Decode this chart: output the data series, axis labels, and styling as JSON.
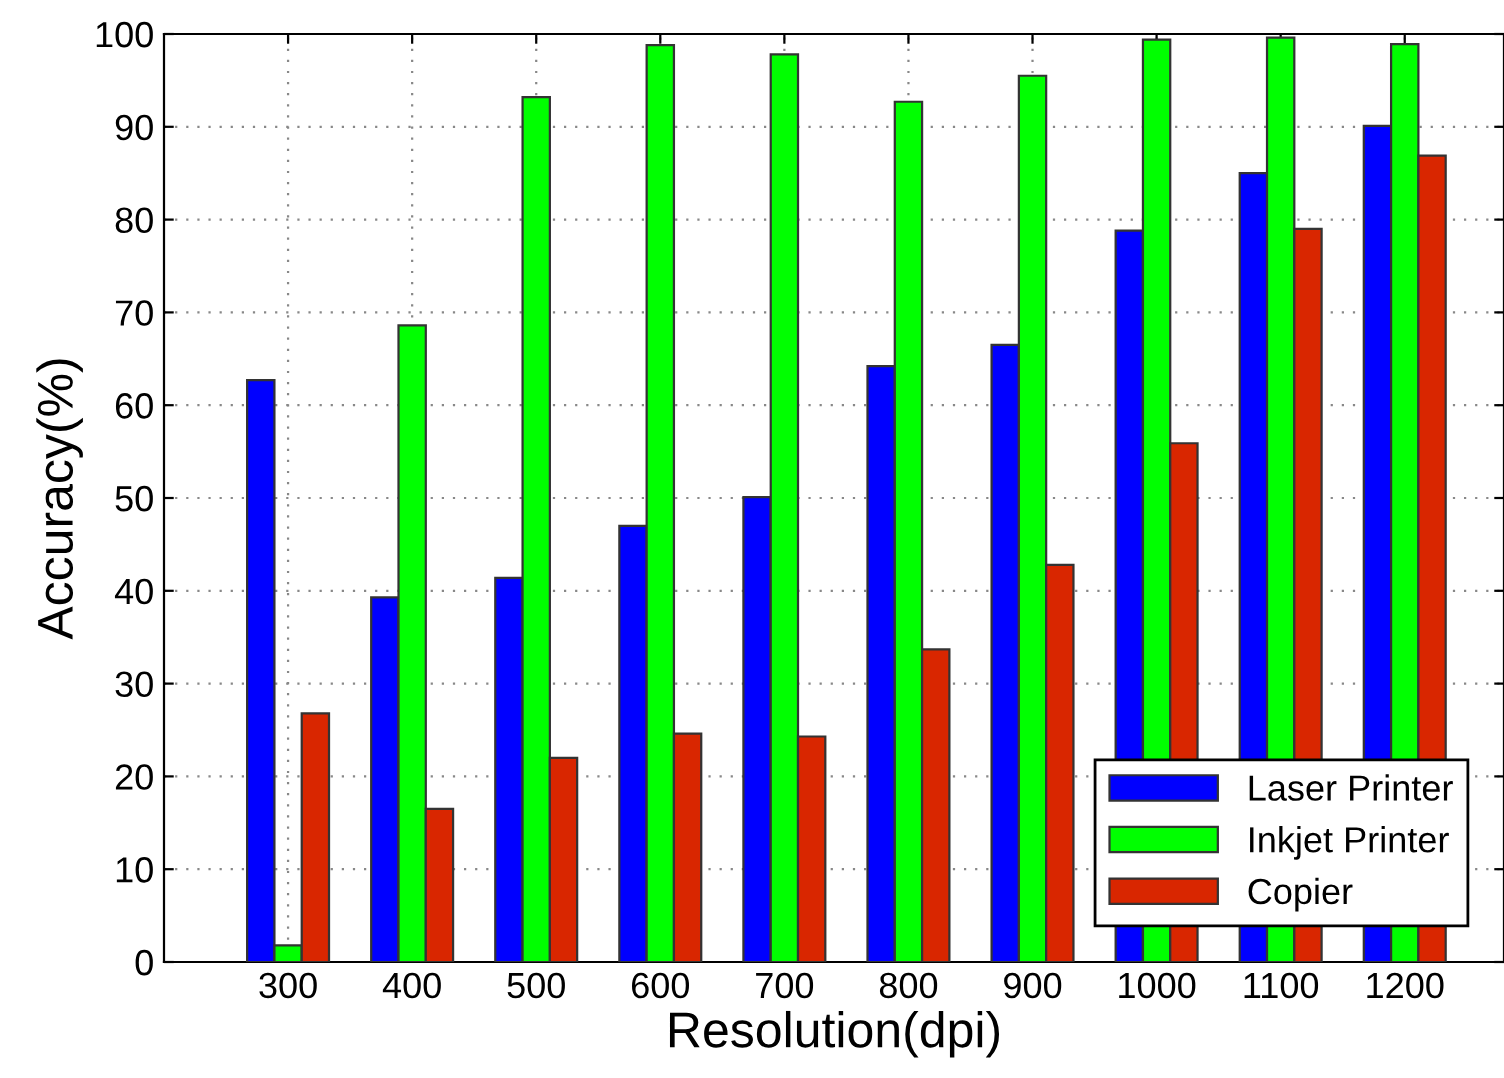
{
  "chart_data": {
    "type": "bar",
    "xlabel": "Resolution(dpi)",
    "ylabel": "Accuracy(%)",
    "categories": [
      "300",
      "400",
      "500",
      "600",
      "700",
      "800",
      "900",
      "1000",
      "1100",
      "1200"
    ],
    "series": [
      {
        "name": "Laser Printer",
        "color": "#0000ff",
        "values": [
          62.7,
          39.3,
          41.4,
          47.0,
          50.1,
          64.2,
          66.5,
          78.8,
          85.0,
          90.1
        ]
      },
      {
        "name": "Inkjet Printer",
        "color": "#00ff00",
        "values": [
          1.8,
          68.6,
          93.2,
          98.8,
          97.8,
          92.7,
          95.5,
          99.4,
          99.6,
          98.9
        ]
      },
      {
        "name": "Copier",
        "color": "#d92600",
        "values": [
          26.8,
          16.5,
          22.0,
          24.6,
          24.3,
          33.7,
          42.8,
          55.9,
          79.0,
          86.9
        ]
      }
    ],
    "ylim": [
      0,
      100
    ],
    "yticks": [
      0,
      10,
      20,
      30,
      40,
      50,
      60,
      70,
      80,
      90,
      100
    ],
    "grid": true,
    "legend": "bottom right"
  }
}
